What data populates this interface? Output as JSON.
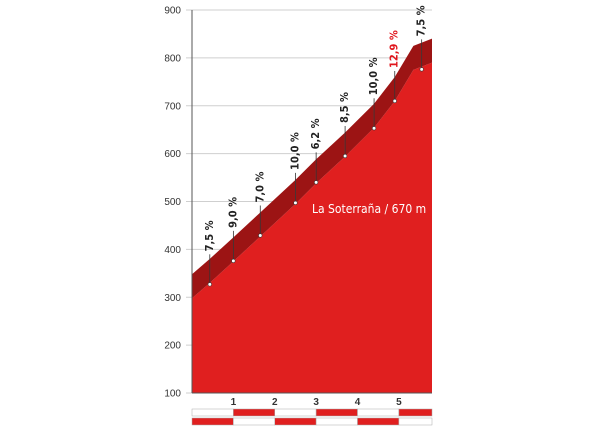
{
  "chart_data": {
    "type": "area",
    "title": "",
    "xlabel": "",
    "ylabel": "",
    "xlim": [
      0,
      5.8
    ],
    "ylim": [
      100,
      900
    ],
    "y_ticks": [
      "100",
      "200",
      "300",
      "400",
      "500",
      "600",
      "700",
      "800",
      "900"
    ],
    "x_ticks": [
      "1",
      "2",
      "3",
      "4",
      "5"
    ],
    "x_tick_values": [
      1,
      2,
      3,
      4,
      5
    ],
    "grid": true,
    "profile": {
      "x": [
        0,
        0.43,
        1.0,
        1.65,
        2.5,
        3.0,
        3.7,
        4.4,
        4.9,
        5.35,
        5.8
      ],
      "y": [
        298,
        330,
        375,
        427,
        495,
        538,
        594,
        654,
        710,
        775,
        790
      ]
    },
    "gradients": [
      {
        "label": "7,5 %",
        "x": 0.43,
        "y": 327,
        "color": "#222222"
      },
      {
        "label": "9,0 %",
        "x": 1.0,
        "y": 376,
        "color": "#222222"
      },
      {
        "label": "7,0 %",
        "x": 1.65,
        "y": 429,
        "color": "#222222"
      },
      {
        "label": "10,0 %",
        "x": 2.5,
        "y": 497,
        "color": "#222222"
      },
      {
        "label": "6,2 %",
        "x": 3.0,
        "y": 540,
        "color": "#222222"
      },
      {
        "label": "8,5 %",
        "x": 3.7,
        "y": 595,
        "color": "#222222"
      },
      {
        "label": "10,0 %",
        "x": 4.4,
        "y": 653,
        "color": "#222222"
      },
      {
        "label": "12,9 %",
        "x": 4.9,
        "y": 710,
        "color": "#e0141b"
      },
      {
        "label": "7,5 %",
        "x": 5.55,
        "y": 776,
        "color": "#222222"
      }
    ],
    "pass_annotation": {
      "label": "La Soterraña / 670 m"
    },
    "colors": {
      "fill": "#e01f1f",
      "band": "#9c1414",
      "grid": "#cfcfcf",
      "axis": "#555555",
      "highlight_text": "#e0141b"
    }
  }
}
